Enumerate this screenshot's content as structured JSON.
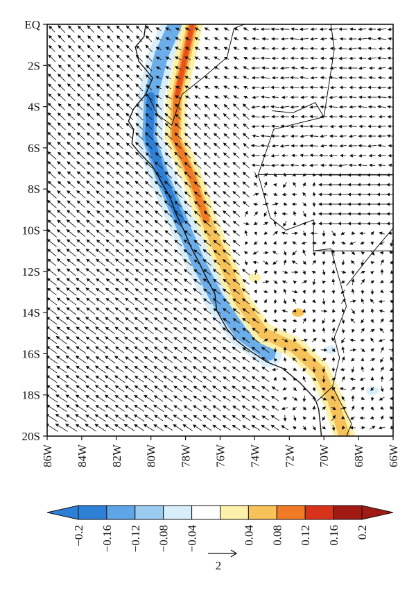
{
  "map": {
    "lat_labels": [
      "EQ",
      "2S",
      "4S",
      "6S",
      "8S",
      "10S",
      "12S",
      "14S",
      "16S",
      "18S",
      "20S"
    ],
    "lon_labels": [
      "86W",
      "84W",
      "82W",
      "80W",
      "78W",
      "76W",
      "74W",
      "72W",
      "70W",
      "68W",
      "66W"
    ],
    "lon_range": [
      -86,
      -66
    ],
    "lat_range": [
      -20,
      0
    ]
  },
  "colorbar": {
    "labels": [
      "−0.2",
      "−0.16",
      "−0.12",
      "−0.08",
      "−0.04",
      "0.04",
      "0.08",
      "0.12",
      "0.16",
      "0.2"
    ],
    "colors": [
      "#2e7fd6",
      "#5fa6e8",
      "#9ccbf2",
      "#d8eefb",
      "#ffffff",
      "#fdf0a8",
      "#f8c25a",
      "#f07a26",
      "#d8321a",
      "#a11a14"
    ],
    "low_extend_color": "#2e7fd6",
    "high_extend_color": "#a11a14"
  },
  "vector_key": {
    "label": "2"
  },
  "colors": {
    "negative": "#2e7fd6",
    "positive": "#e8501e",
    "vectors": "#111111"
  }
}
